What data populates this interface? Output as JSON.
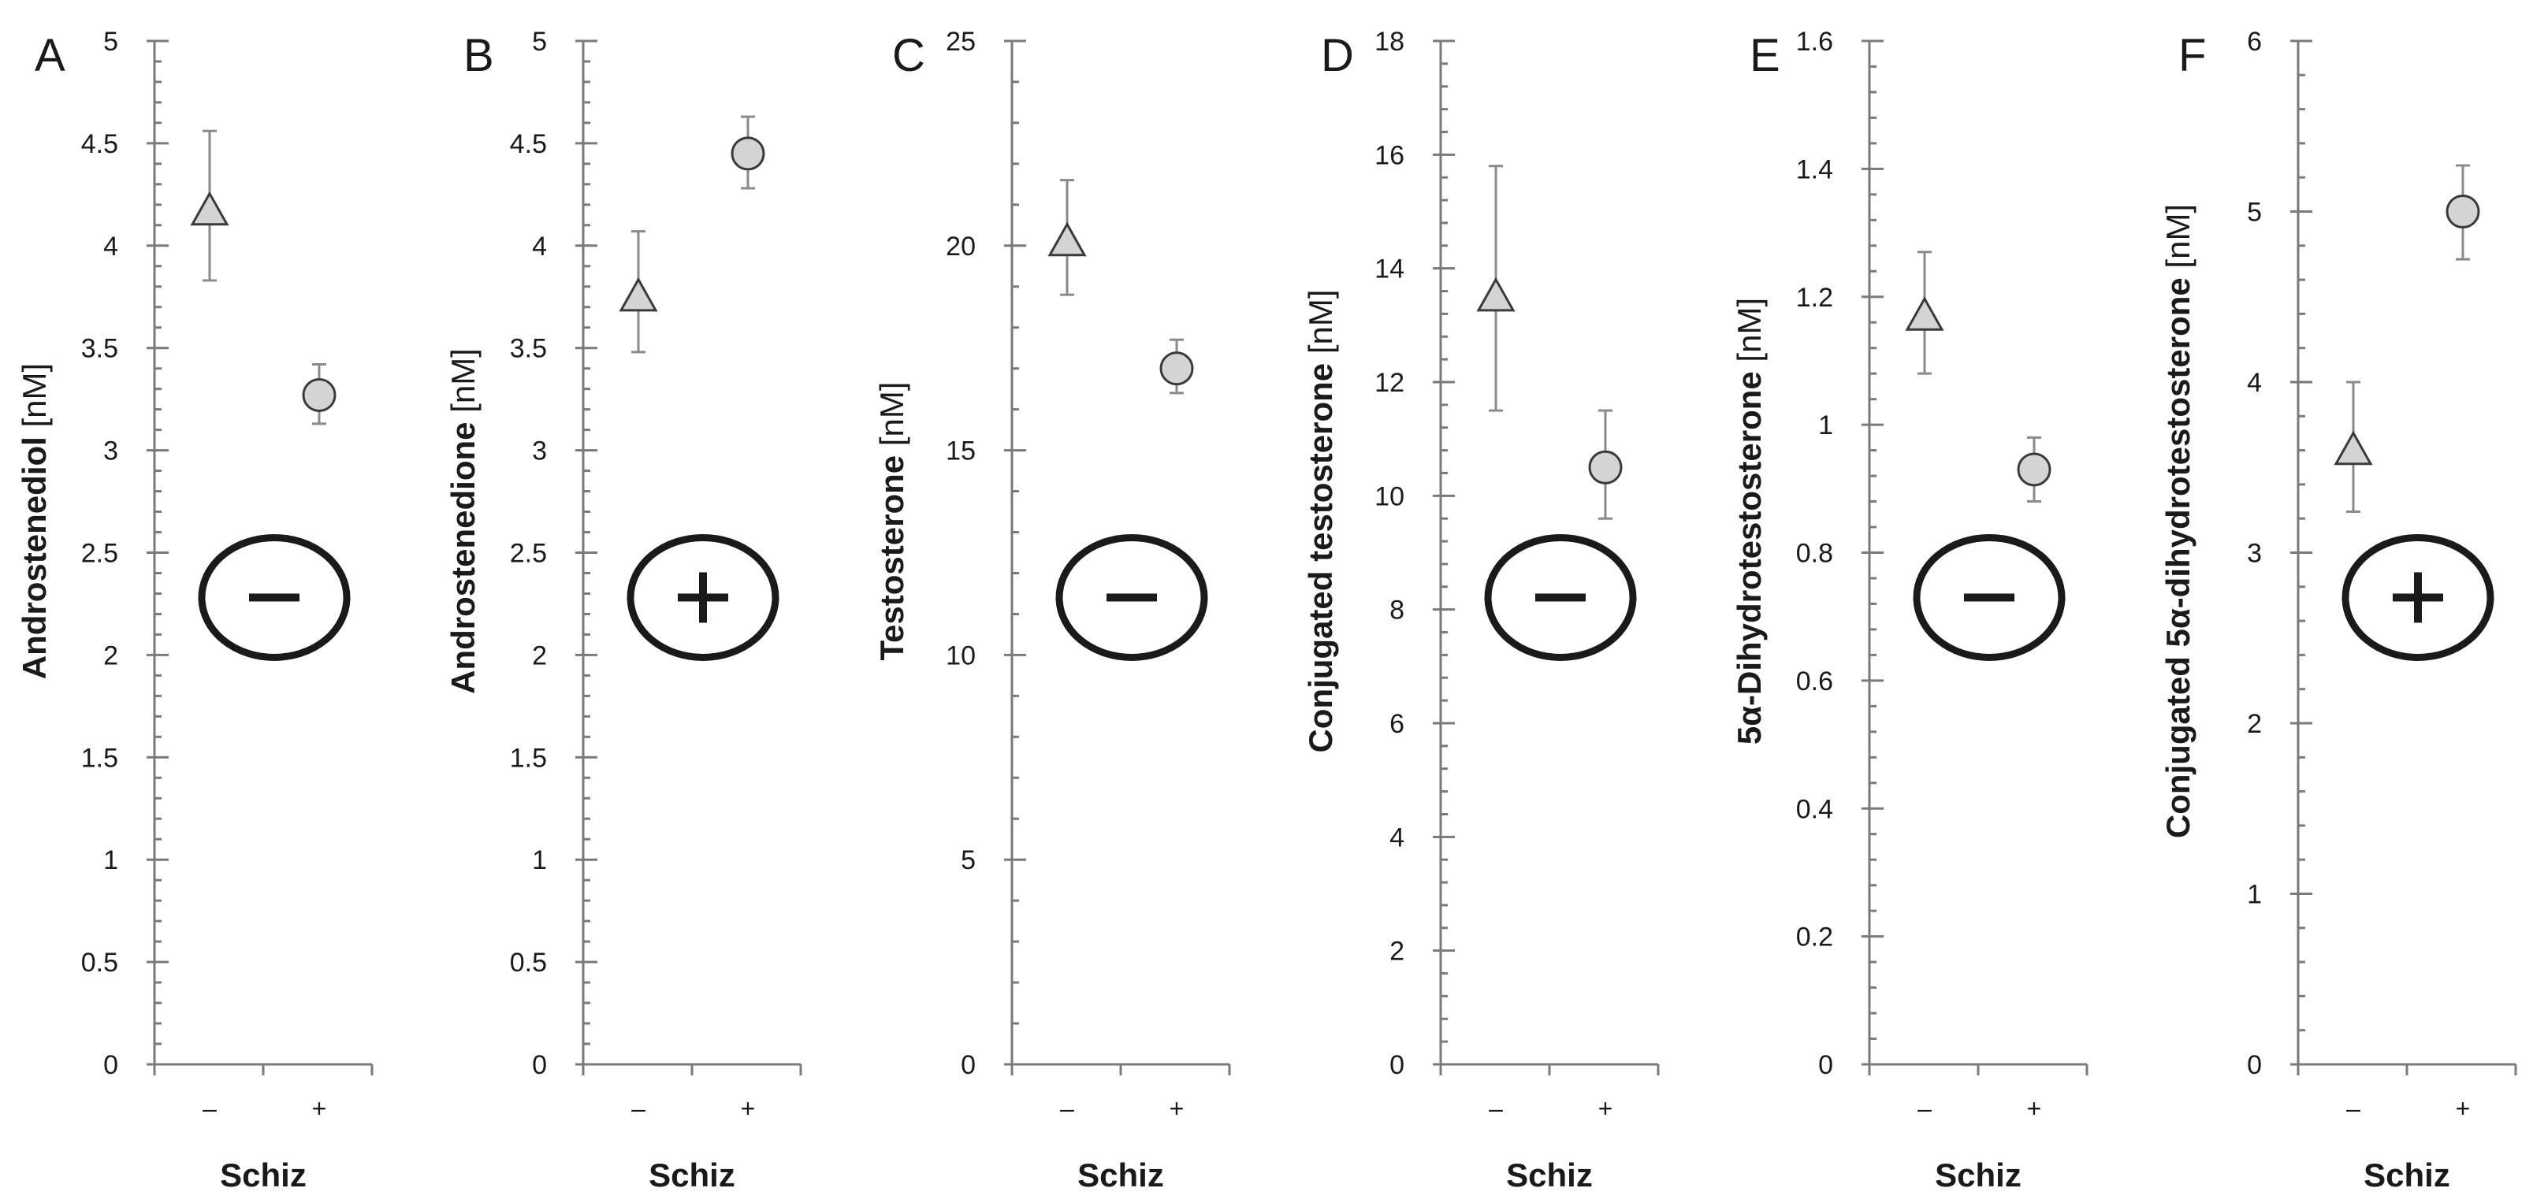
{
  "chart_data": [
    {
      "panel": "A",
      "type": "scatter",
      "ylabel_main": "Androstenediol",
      "ylabel_unit": " [nM]",
      "xlabel": "Schiz",
      "categories": [
        "–",
        "+"
      ],
      "ylim": [
        0,
        5
      ],
      "major_step": 0.5,
      "tick_labels": [
        "0",
        "0.5",
        "1",
        "1.5",
        "2",
        "2.5",
        "3",
        "3.5",
        "4",
        "4.5",
        "5"
      ],
      "points": [
        {
          "category": "–",
          "marker": "triangle",
          "value": 4.17,
          "lower": 3.83,
          "upper": 4.56
        },
        {
          "category": "+",
          "marker": "circle",
          "value": 3.27,
          "lower": 3.13,
          "upper": 3.42
        }
      ],
      "sign": "minus",
      "sign_level": 2.25
    },
    {
      "panel": "B",
      "type": "scatter",
      "ylabel_main": "Androstenedione",
      "ylabel_unit": " [nM]",
      "xlabel": "Schiz",
      "categories": [
        "–",
        "+"
      ],
      "ylim": [
        0,
        5
      ],
      "major_step": 0.5,
      "tick_labels": [
        "0",
        "0.5",
        "1",
        "1.5",
        "2",
        "2.5",
        "3",
        "3.5",
        "4",
        "4.5",
        "5"
      ],
      "points": [
        {
          "category": "–",
          "marker": "triangle",
          "value": 3.75,
          "lower": 3.48,
          "upper": 4.07
        },
        {
          "category": "+",
          "marker": "circle",
          "value": 4.45,
          "lower": 4.28,
          "upper": 4.63
        }
      ],
      "sign": "plus",
      "sign_level": 2.25
    },
    {
      "panel": "C",
      "type": "scatter",
      "ylabel_main": "Testosterone",
      "ylabel_unit": " [nM]",
      "xlabel": "Schiz",
      "categories": [
        "–",
        "+"
      ],
      "ylim": [
        0,
        25
      ],
      "major_step": 5,
      "tick_labels": [
        "0",
        "5",
        "10",
        "15",
        "20",
        "25"
      ],
      "points": [
        {
          "category": "–",
          "marker": "triangle",
          "value": 20.1,
          "lower": 18.8,
          "upper": 21.6
        },
        {
          "category": "+",
          "marker": "circle",
          "value": 17.0,
          "lower": 16.4,
          "upper": 17.7
        }
      ],
      "sign": "minus",
      "sign_level": 11.25
    },
    {
      "panel": "D",
      "type": "scatter",
      "ylabel_main": "Conjugated testosterone",
      "ylabel_unit": " [nM]",
      "xlabel": "Schiz",
      "categories": [
        "–",
        "+"
      ],
      "ylim": [
        0,
        18
      ],
      "major_step": 2,
      "tick_labels": [
        "0",
        "2",
        "4",
        "6",
        "8",
        "10",
        "12",
        "14",
        "16",
        "18"
      ],
      "points": [
        {
          "category": "–",
          "marker": "triangle",
          "value": 13.5,
          "lower": 11.5,
          "upper": 15.8
        },
        {
          "category": "+",
          "marker": "circle",
          "value": 10.5,
          "lower": 9.6,
          "upper": 11.5
        }
      ],
      "sign": "minus",
      "sign_level": 8.1
    },
    {
      "panel": "E",
      "type": "scatter",
      "ylabel_main": "5α-Dihydrotestosterone",
      "ylabel_unit": " [nM]",
      "xlabel": "Schiz",
      "categories": [
        "–",
        "+"
      ],
      "ylim": [
        0,
        1.6
      ],
      "major_step": 0.2,
      "tick_labels": [
        "0",
        "0.2",
        "0.4",
        "0.6",
        "0.8",
        "1",
        "1.2",
        "1.4",
        "1.6"
      ],
      "points": [
        {
          "category": "–",
          "marker": "triangle",
          "value": 1.17,
          "lower": 1.08,
          "upper": 1.27
        },
        {
          "category": "+",
          "marker": "circle",
          "value": 0.93,
          "lower": 0.88,
          "upper": 0.98
        }
      ],
      "sign": "minus",
      "sign_level": 0.72
    },
    {
      "panel": "F",
      "type": "scatter",
      "ylabel_main": "Conjugated 5α-dihydrotestosterone",
      "ylabel_unit": " [nM]",
      "xlabel": "Schiz",
      "categories": [
        "–",
        "+"
      ],
      "ylim": [
        0,
        6
      ],
      "major_step": 1,
      "tick_labels": [
        "0",
        "1",
        "2",
        "3",
        "4",
        "5",
        "6"
      ],
      "points": [
        {
          "category": "–",
          "marker": "triangle",
          "value": 3.6,
          "lower": 3.24,
          "upper": 4.0
        },
        {
          "category": "+",
          "marker": "circle",
          "value": 5.0,
          "lower": 4.72,
          "upper": 5.27
        }
      ],
      "sign": "plus",
      "sign_level": 2.7
    }
  ]
}
